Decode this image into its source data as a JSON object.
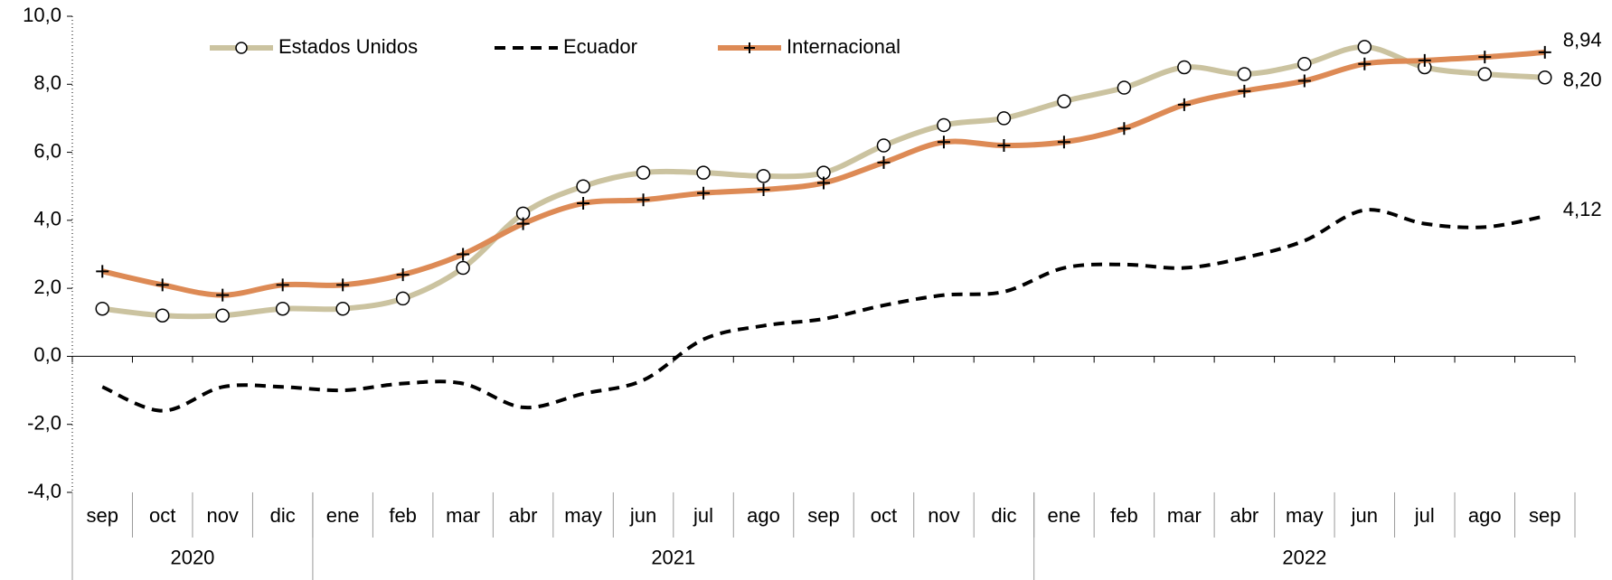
{
  "chart_data": {
    "type": "line",
    "categories": [
      "sep",
      "oct",
      "nov",
      "dic",
      "ene",
      "feb",
      "mar",
      "abr",
      "may",
      "jun",
      "jul",
      "ago",
      "sep",
      "oct",
      "nov",
      "dic",
      "ene",
      "feb",
      "mar",
      "abr",
      "may",
      "jun",
      "jul",
      "ago",
      "sep"
    ],
    "year_groups": [
      {
        "label": "2020",
        "count": 4
      },
      {
        "label": "2021",
        "count": 12
      },
      {
        "label": "2022",
        "count": 9
      }
    ],
    "ylim": [
      -4,
      10
    ],
    "yticks": [
      {
        "value": -4,
        "label": "-4,0"
      },
      {
        "value": -2,
        "label": "-2,0"
      },
      {
        "value": 0,
        "label": "0,0"
      },
      {
        "value": 2,
        "label": "2,0"
      },
      {
        "value": 4,
        "label": "4,0"
      },
      {
        "value": 6,
        "label": "6,0"
      },
      {
        "value": 8,
        "label": "8,0"
      },
      {
        "value": 10,
        "label": "10,0"
      }
    ],
    "grid": false,
    "legend": "top",
    "series": [
      {
        "name": "Estados Unidos",
        "color": "#cbc3a0",
        "marker": "circle",
        "dash": "solid",
        "label_color": "#000000",
        "values": [
          1.4,
          1.2,
          1.2,
          1.4,
          1.4,
          1.7,
          2.6,
          4.2,
          5.0,
          5.4,
          5.4,
          5.3,
          5.4,
          6.2,
          6.8,
          7.0,
          7.5,
          7.9,
          8.5,
          8.3,
          8.6,
          9.1,
          8.5,
          8.3,
          8.2
        ],
        "value_labels": [
          null,
          null,
          null,
          null,
          null,
          null,
          null,
          null,
          null,
          null,
          null,
          null,
          null,
          null,
          null,
          null,
          null,
          null,
          null,
          null,
          null,
          null,
          null,
          null,
          "8,20"
        ]
      },
      {
        "name": "Ecuador",
        "color": "#000000",
        "marker": null,
        "dash": "dashed",
        "label_color": "#000000",
        "values": [
          -0.9,
          -1.6,
          -0.9,
          -0.9,
          -1.0,
          -0.8,
          -0.8,
          -1.5,
          -1.1,
          -0.7,
          0.5,
          0.9,
          1.1,
          1.5,
          1.8,
          1.9,
          2.6,
          2.7,
          2.6,
          2.9,
          3.4,
          4.3,
          3.9,
          3.8,
          4.12
        ],
        "value_labels": [
          null,
          null,
          null,
          null,
          null,
          null,
          null,
          null,
          null,
          null,
          null,
          null,
          null,
          null,
          null,
          null,
          null,
          null,
          null,
          null,
          null,
          null,
          null,
          null,
          "4,12"
        ]
      },
      {
        "name": "Internacional",
        "color": "#dd8a55",
        "marker": "plus",
        "dash": "solid",
        "label_color": "#b07a40",
        "values": [
          2.5,
          2.1,
          1.8,
          2.1,
          2.1,
          2.4,
          3.0,
          3.9,
          4.5,
          4.6,
          4.8,
          4.9,
          5.1,
          5.7,
          6.3,
          6.2,
          6.3,
          6.7,
          7.4,
          7.8,
          8.1,
          8.6,
          8.7,
          8.8,
          8.94
        ],
        "value_labels": [
          null,
          null,
          null,
          null,
          null,
          null,
          null,
          null,
          null,
          null,
          null,
          null,
          null,
          null,
          null,
          null,
          null,
          null,
          null,
          null,
          null,
          null,
          null,
          null,
          "8,94"
        ]
      }
    ]
  }
}
